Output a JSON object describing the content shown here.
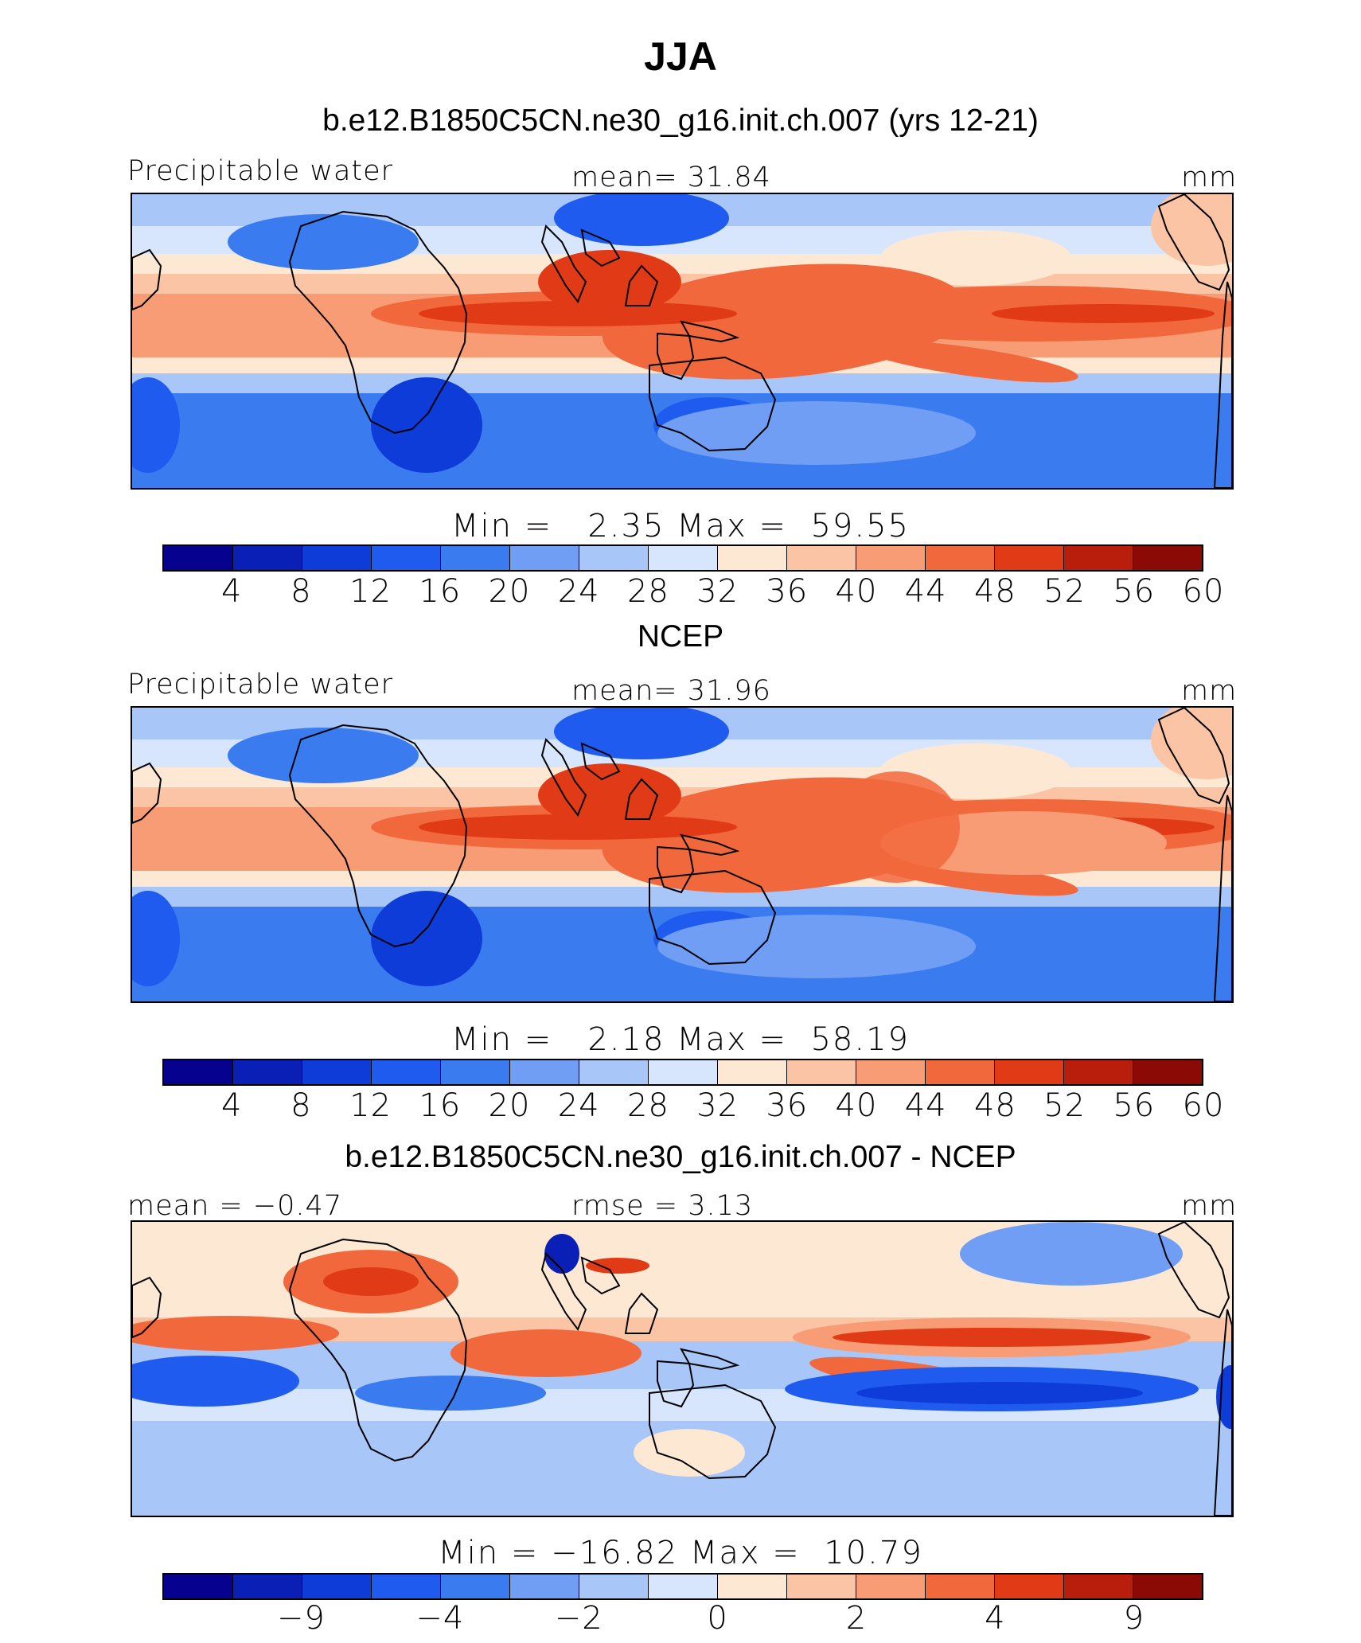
{
  "title": "JJA",
  "palette": [
    "#06028f",
    "#0a1fb5",
    "#0e3cd8",
    "#1f5bee",
    "#3a7cf0",
    "#6f9ef4",
    "#a9c6f8",
    "#d7e6fc",
    "#fde8d3",
    "#fbc4a5",
    "#f79c74",
    "#f2683d",
    "#e13a16",
    "#b81e0b",
    "#8b0a06"
  ],
  "land_color": "#e9eef8",
  "coast_color": "#000000",
  "panels": [
    {
      "title": "b.e12.B1850C5CN.ne30_g16.init.ch.007 (yrs 12-21)",
      "left_label": "Precipitable water",
      "center_label": "mean=  31.84",
      "right_label": "mm",
      "minmax": "Min =   2.35 Max =  59.55",
      "ticks": [
        "4",
        "8",
        "12",
        "16",
        "20",
        "24",
        "28",
        "32",
        "36",
        "40",
        "44",
        "48",
        "52",
        "56",
        "60"
      ]
    },
    {
      "title": "NCEP",
      "left_label": "Precipitable water",
      "center_label": "mean=  31.96",
      "right_label": "mm",
      "minmax": "Min =   2.18 Max =  58.19",
      "ticks": [
        "4",
        "8",
        "12",
        "16",
        "20",
        "24",
        "28",
        "32",
        "36",
        "40",
        "44",
        "48",
        "52",
        "56",
        "60"
      ]
    },
    {
      "title": "b.e12.B1850C5CN.ne30_g16.init.ch.007 - NCEP",
      "left_label": "mean =  −0.47",
      "center_label": "rmse =   3.13",
      "right_label": "mm",
      "minmax": "Min = −16.82 Max =  10.79",
      "ticks": [
        "−9",
        "−4",
        "−2",
        "0",
        "2",
        "4",
        "9"
      ]
    }
  ],
  "chart_data": [
    {
      "type": "heatmap",
      "title": "b.e12.B1850C5CN.ne30_g16.init.ch.007 (yrs 12-21)",
      "variable": "Precipitable water",
      "units": "mm",
      "mean": 31.84,
      "min": 2.35,
      "max": 59.55,
      "contour_levels": [
        4,
        8,
        12,
        16,
        20,
        24,
        28,
        32,
        36,
        40,
        44,
        48,
        52,
        56,
        60
      ],
      "x_range_deg": [
        -60,
        300
      ],
      "y_range_deg": [
        -40,
        56
      ]
    },
    {
      "type": "heatmap",
      "title": "NCEP",
      "variable": "Precipitable water",
      "units": "mm",
      "mean": 31.96,
      "min": 2.18,
      "max": 58.19,
      "contour_levels": [
        4,
        8,
        12,
        16,
        20,
        24,
        28,
        32,
        36,
        40,
        44,
        48,
        52,
        56,
        60
      ],
      "x_range_deg": [
        -60,
        300
      ],
      "y_range_deg": [
        -40,
        56
      ]
    },
    {
      "type": "heatmap",
      "title": "b.e12.B1850C5CN.ne30_g16.init.ch.007 - NCEP",
      "units": "mm",
      "mean": -0.47,
      "rmse": 3.13,
      "min": -16.82,
      "max": 10.79,
      "contour_levels": [
        -9,
        -4,
        -2,
        0,
        2,
        4,
        9
      ],
      "x_range_deg": [
        -60,
        300
      ],
      "y_range_deg": [
        -40,
        56
      ]
    }
  ]
}
